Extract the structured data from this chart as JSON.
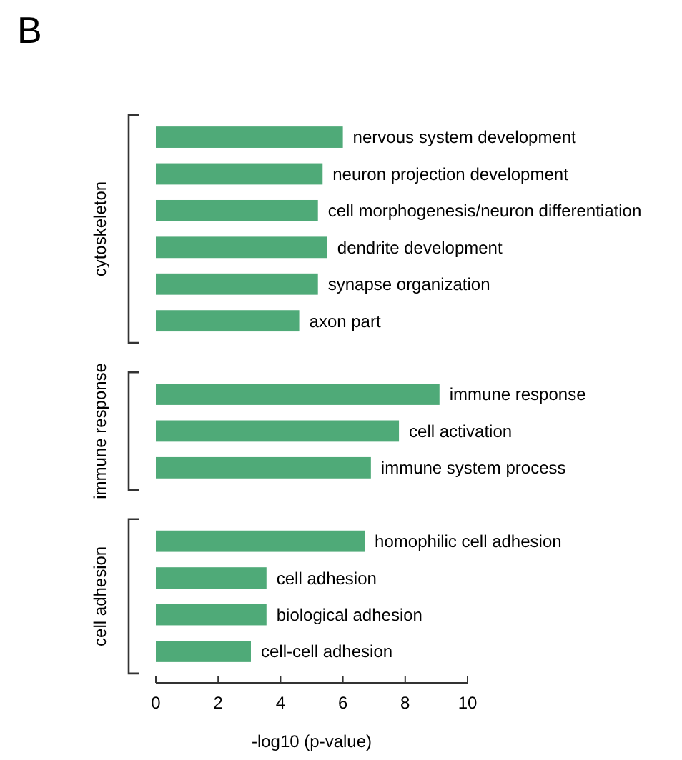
{
  "chart_data": {
    "type": "bar",
    "orientation": "horizontal",
    "title": "B",
    "xlabel": "-log10 (p-value)",
    "categories": [
      "nervous system development",
      "neuron projection development",
      "cell morphogenesis/neuron differentiation",
      "dendrite development",
      "synapse organization",
      "axon part",
      null,
      "immune response",
      "cell activation",
      "immune system process",
      null,
      "homophilic cell adhesion",
      "cell adhesion",
      "biological adhesion",
      "cell-cell adhesion"
    ],
    "values": [
      6.0,
      5.35,
      5.2,
      5.5,
      5.2,
      4.6,
      null,
      9.1,
      7.8,
      6.9,
      null,
      6.7,
      3.55,
      3.55,
      3.05
    ],
    "color": "#4faa78",
    "xlim": [
      0,
      10
    ],
    "xticks": [
      0,
      2,
      4,
      6,
      8,
      10
    ],
    "annotations": [
      "cytoskeleton",
      "immune response",
      "cell adhesion"
    ]
  }
}
